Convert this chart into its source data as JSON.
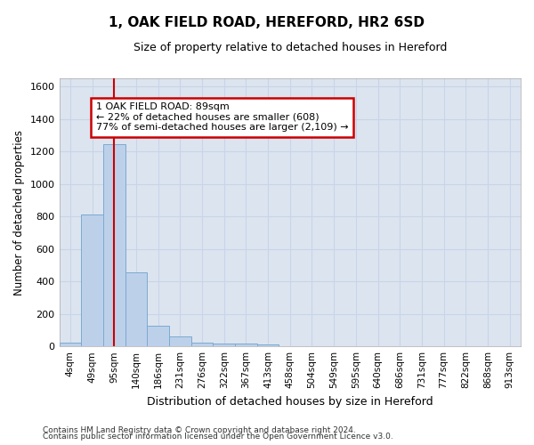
{
  "title": "1, OAK FIELD ROAD, HEREFORD, HR2 6SD",
  "subtitle": "Size of property relative to detached houses in Hereford",
  "xlabel": "Distribution of detached houses by size in Hereford",
  "ylabel": "Number of detached properties",
  "footer_line1": "Contains HM Land Registry data © Crown copyright and database right 2024.",
  "footer_line2": "Contains public sector information licensed under the Open Government Licence v3.0.",
  "bar_labels": [
    "4sqm",
    "49sqm",
    "95sqm",
    "140sqm",
    "186sqm",
    "231sqm",
    "276sqm",
    "322sqm",
    "367sqm",
    "413sqm",
    "458sqm",
    "504sqm",
    "549sqm",
    "595sqm",
    "640sqm",
    "686sqm",
    "731sqm",
    "777sqm",
    "822sqm",
    "868sqm",
    "913sqm"
  ],
  "bar_values": [
    25,
    810,
    1245,
    455,
    125,
    62,
    25,
    20,
    16,
    13,
    0,
    0,
    0,
    0,
    0,
    0,
    0,
    0,
    0,
    0,
    0
  ],
  "bar_color": "#bdd0ea",
  "bar_edge_color": "#7aaad0",
  "grid_color": "#c8d4e8",
  "bg_color": "#dce4f0",
  "annotation_text": "1 OAK FIELD ROAD: 89sqm\n← 22% of detached houses are smaller (608)\n77% of semi-detached houses are larger (2,109) →",
  "annotation_box_color": "#cc0000",
  "vline_x": 2.0,
  "vline_color": "#cc0000",
  "ylim": [
    0,
    1650
  ],
  "yticks": [
    0,
    200,
    400,
    600,
    800,
    1000,
    1200,
    1400,
    1600
  ]
}
